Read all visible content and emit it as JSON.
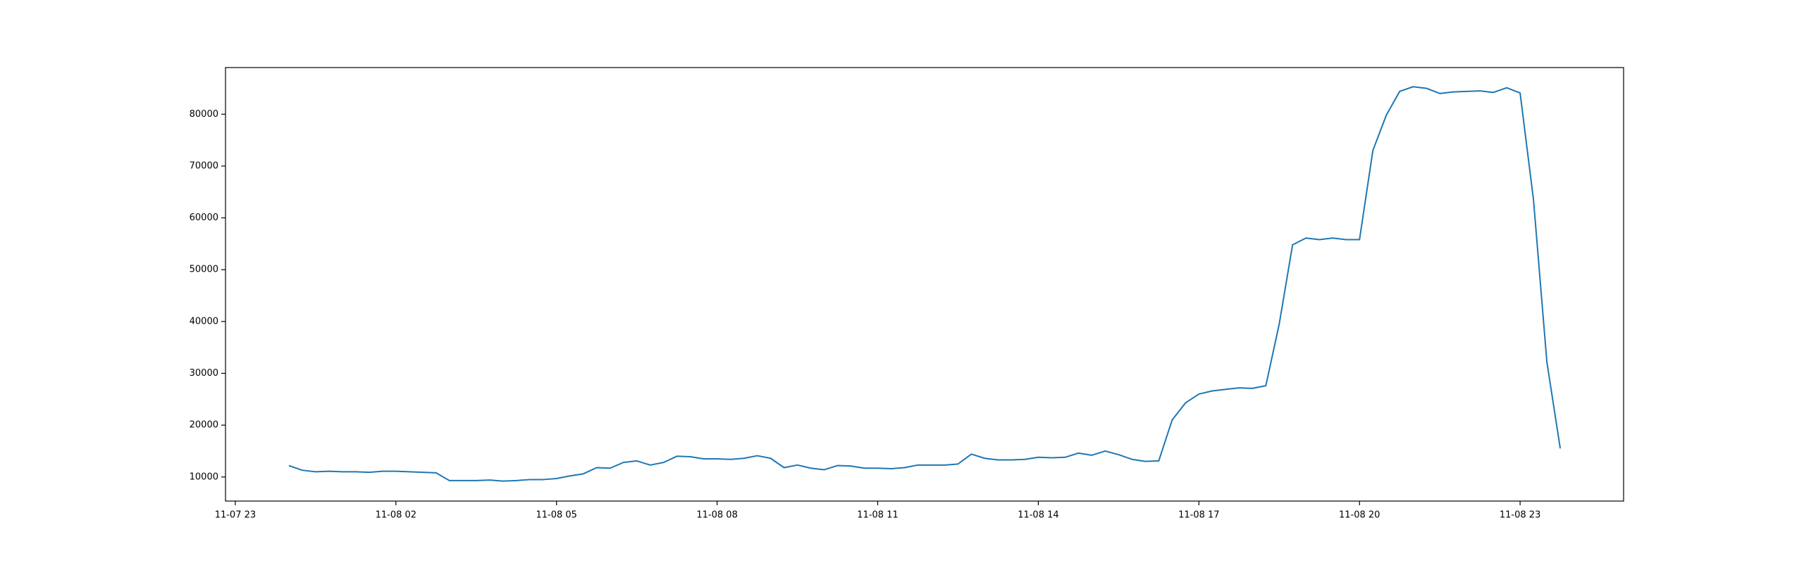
{
  "chart_data": {
    "type": "line",
    "x": [
      "11-08 00:00",
      "11-08 00:15",
      "11-08 00:30",
      "11-08 00:45",
      "11-08 01:00",
      "11-08 01:15",
      "11-08 01:30",
      "11-08 01:45",
      "11-08 02:00",
      "11-08 02:15",
      "11-08 02:30",
      "11-08 02:45",
      "11-08 03:00",
      "11-08 03:15",
      "11-08 03:30",
      "11-08 03:45",
      "11-08 04:00",
      "11-08 04:15",
      "11-08 04:30",
      "11-08 04:45",
      "11-08 05:00",
      "11-08 05:15",
      "11-08 05:30",
      "11-08 05:45",
      "11-08 06:00",
      "11-08 06:15",
      "11-08 06:30",
      "11-08 06:45",
      "11-08 07:00",
      "11-08 07:15",
      "11-08 07:30",
      "11-08 07:45",
      "11-08 08:00",
      "11-08 08:15",
      "11-08 08:30",
      "11-08 08:45",
      "11-08 09:00",
      "11-08 09:15",
      "11-08 09:30",
      "11-08 09:45",
      "11-08 10:00",
      "11-08 10:15",
      "11-08 10:30",
      "11-08 10:45",
      "11-08 11:00",
      "11-08 11:15",
      "11-08 11:30",
      "11-08 11:45",
      "11-08 12:00",
      "11-08 12:15",
      "11-08 12:30",
      "11-08 12:45",
      "11-08 13:00",
      "11-08 13:15",
      "11-08 13:30",
      "11-08 13:45",
      "11-08 14:00",
      "11-08 14:15",
      "11-08 14:30",
      "11-08 14:45",
      "11-08 15:00",
      "11-08 15:15",
      "11-08 15:30",
      "11-08 15:45",
      "11-08 16:00",
      "11-08 16:15",
      "11-08 16:30",
      "11-08 16:45",
      "11-08 17:00",
      "11-08 17:15",
      "11-08 17:30",
      "11-08 17:45",
      "11-08 18:00",
      "11-08 18:15",
      "11-08 18:30",
      "11-08 18:45",
      "11-08 19:00",
      "11-08 19:15",
      "11-08 19:30",
      "11-08 19:45",
      "11-08 20:00",
      "11-08 20:15",
      "11-08 20:30",
      "11-08 20:45",
      "11-08 21:00",
      "11-08 21:15",
      "11-08 21:30",
      "11-08 21:45",
      "11-08 22:00",
      "11-08 22:15",
      "11-08 22:30",
      "11-08 22:45",
      "11-08 23:00",
      "11-08 23:15",
      "11-08 23:30",
      "11-08 23:45"
    ],
    "series": [
      {
        "color": "#1f77b4",
        "values": [
          12200,
          11300,
          11000,
          11100,
          11000,
          11000,
          10900,
          11100,
          11100,
          11000,
          10900,
          10800,
          9300,
          9300,
          9300,
          9400,
          9200,
          9300,
          9500,
          9500,
          9700,
          10200,
          10600,
          11800,
          11700,
          12800,
          13100,
          12300,
          12800,
          14000,
          13900,
          13500,
          13500,
          13400,
          13600,
          14100,
          13600,
          11800,
          12300,
          11700,
          11400,
          12200,
          12100,
          11700,
          11700,
          11600,
          11800,
          12300,
          12300,
          12300,
          12500,
          14400,
          13600,
          13300,
          13300,
          13400,
          13800,
          13700,
          13800,
          14600,
          14200,
          15000,
          14300,
          13400,
          13000,
          13100,
          21000,
          24300,
          26000,
          26600,
          26900,
          27200,
          27100,
          27600,
          39500,
          54800,
          56100,
          55800,
          56100,
          55800,
          55800,
          73000,
          79800,
          84400,
          85300,
          85000,
          84000,
          84300,
          84400,
          84500,
          84200,
          85100,
          84100,
          63500,
          32200,
          15500
        ]
      }
    ],
    "xlim": [
      "11-07 22:49",
      "11-09 00:56"
    ],
    "xticks": [
      "11-07 23",
      "11-08 02",
      "11-08 05",
      "11-08 08",
      "11-08 11",
      "11-08 14",
      "11-08 17",
      "11-08 20",
      "11-08 23"
    ],
    "ylim": [
      5350,
      89000
    ],
    "yticks": [
      10000,
      20000,
      30000,
      40000,
      50000,
      60000,
      70000,
      80000
    ]
  }
}
